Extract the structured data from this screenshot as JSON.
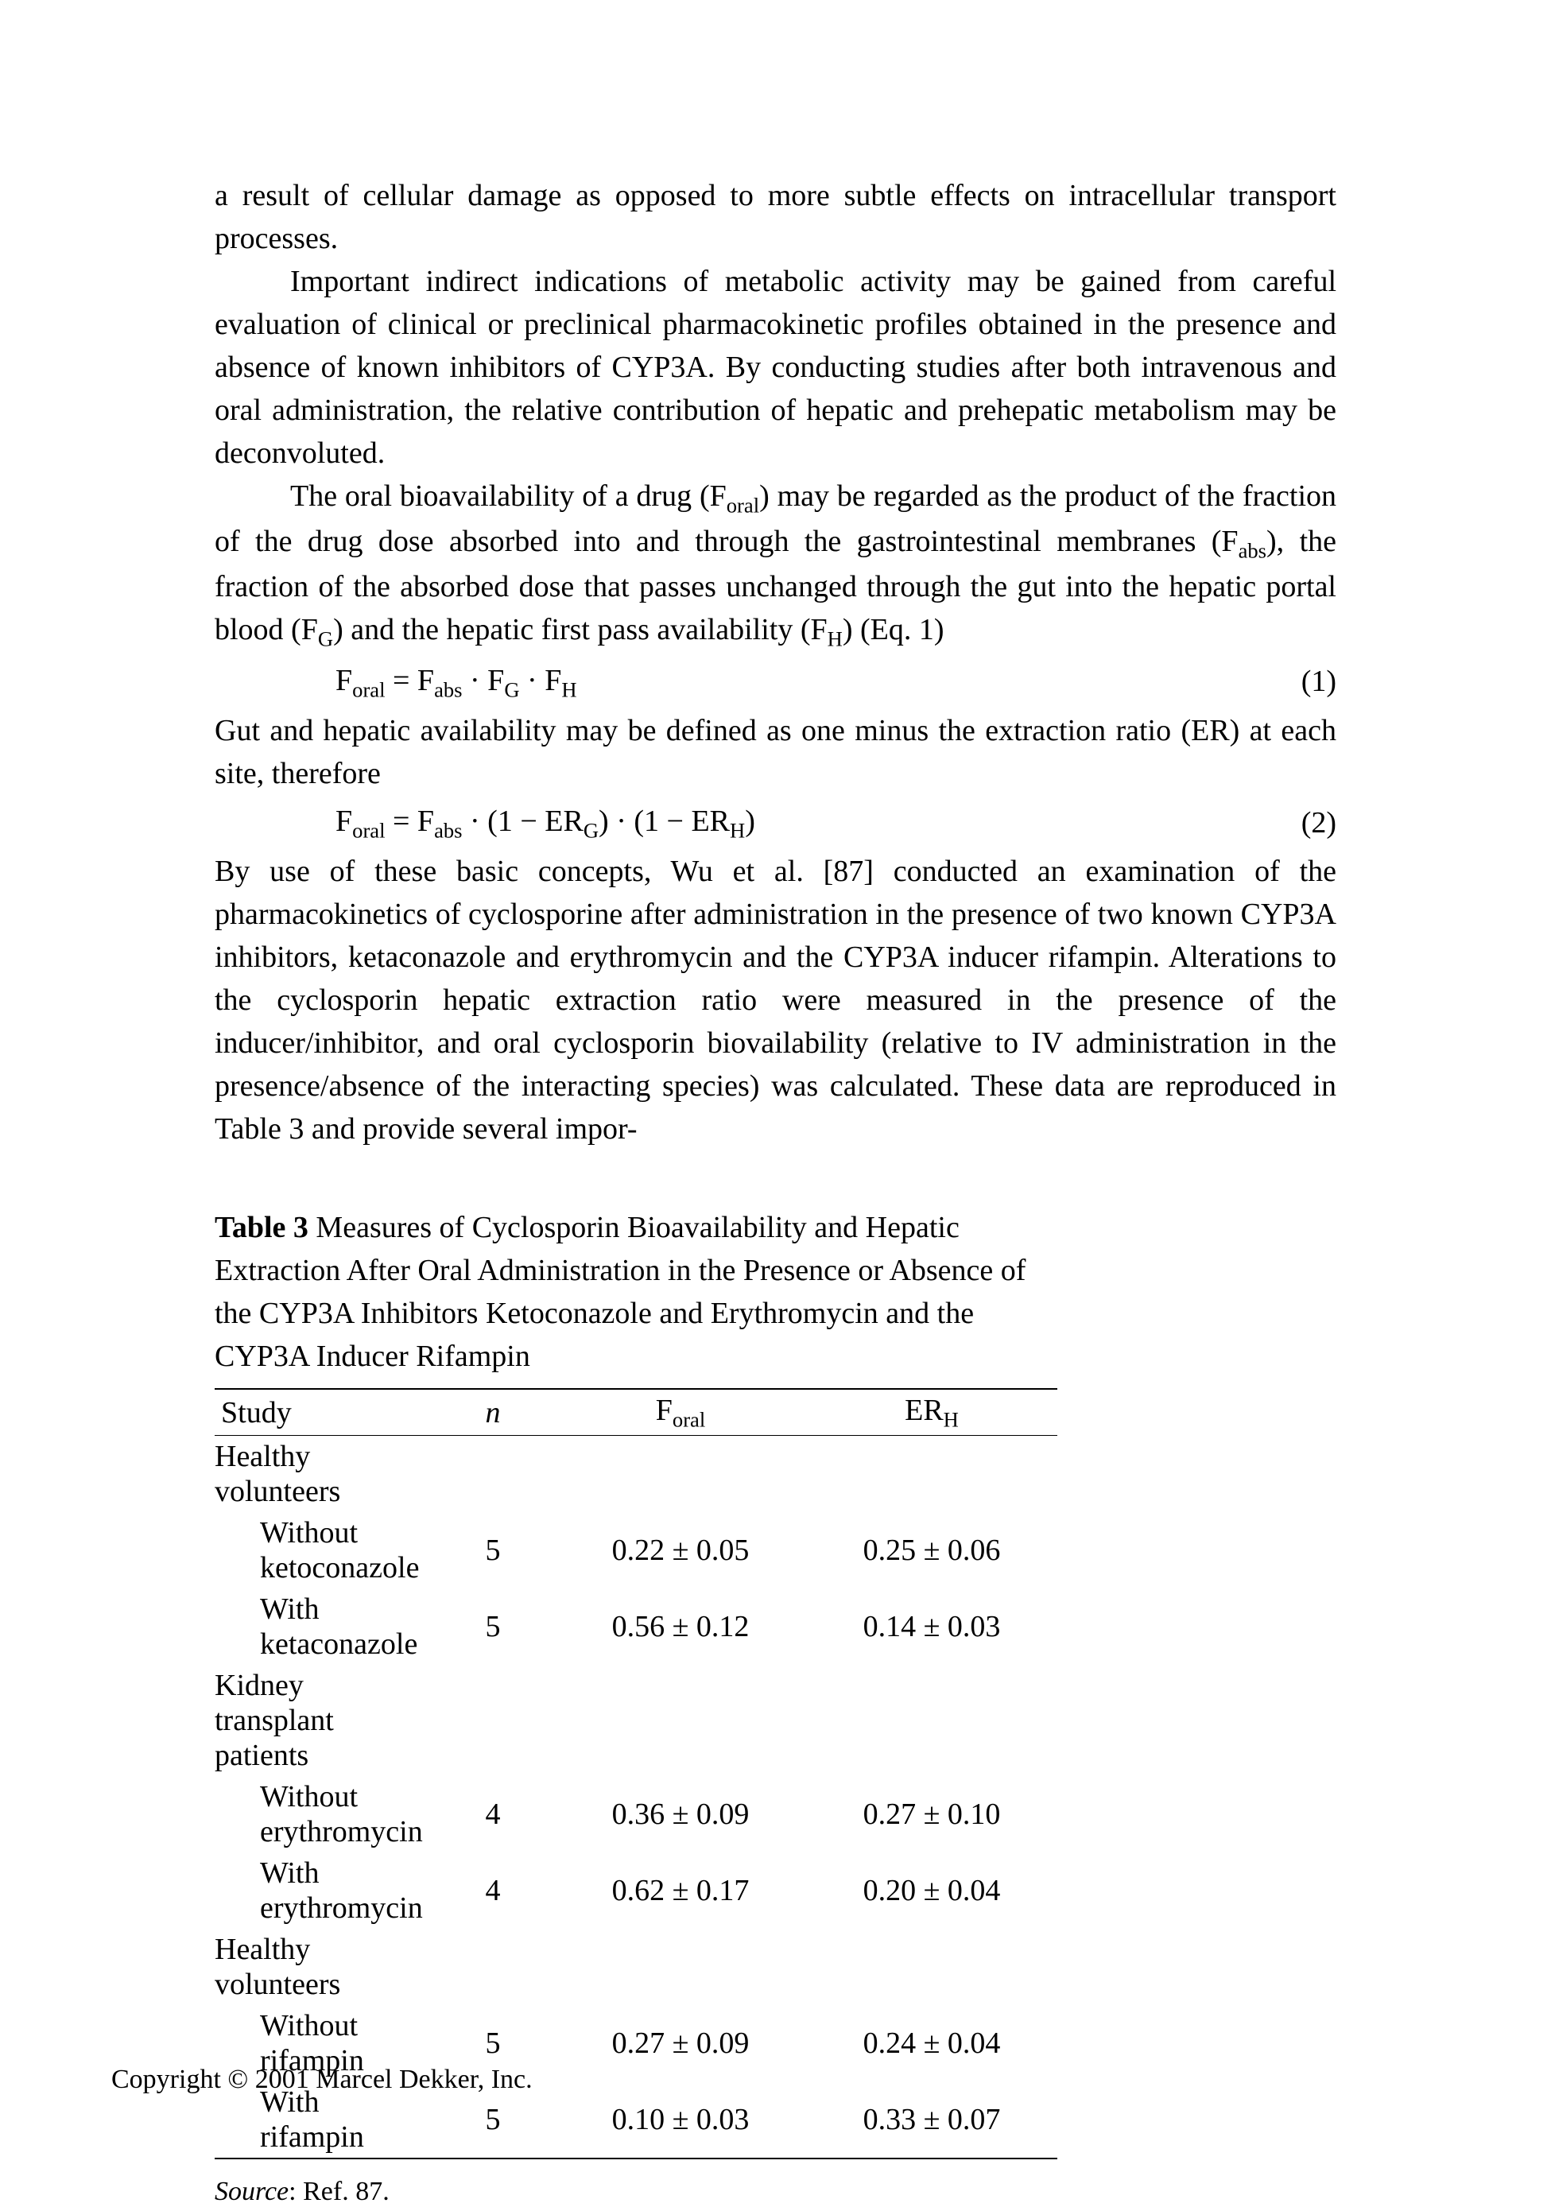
{
  "paragraphs": {
    "p1": "a result of cellular damage as opposed to more subtle effects on intracellular transport processes.",
    "p2": "Important indirect indications of metabolic activity may be gained from careful evaluation of clinical or preclinical pharmacokinetic profiles obtained in the presence and absence of known inhibitors of CYP3A. By conducting studies after both intravenous and oral administration, the relative contribution of hepatic and prehepatic metabolism may be deconvoluted.",
    "p3a": "The oral bioavailability of a drug (F",
    "p3b": ") may be regarded as the product of the fraction of the drug dose absorbed into and through the gastrointestinal membranes (F",
    "p3c": "), the fraction of the absorbed dose that passes unchanged through the gut into the hepatic portal blood (F",
    "p3d": ") and the hepatic first pass availability (F",
    "p3e": ") (Eq. 1)",
    "p4": "Gut and hepatic availability may be defined as one minus the extraction ratio (ER) at each site, therefore",
    "p5": "By use of these basic concepts, Wu et al. [87] conducted an examination of the pharmacokinetics of cyclosporine after administration in the presence of two known CYP3A inhibitors, ketaconazole and erythromycin and the CYP3A inducer rifampin. Alterations to the cyclosporin hepatic extraction ratio were measured in the presence of the inducer/inhibitor, and oral cyclosporin biovailability (relative to IV administration in the presence/absence of the interacting species) was calculated. These data are reproduced in Table 3 and provide several impor-"
  },
  "subscripts": {
    "oral": "oral",
    "abs": "abs",
    "G": "G",
    "H": "H"
  },
  "equations": {
    "eq1_num": "(1)",
    "eq2_num": "(2)",
    "eq1_parts": {
      "a": "F",
      "b": " = F",
      "c": " · F",
      "d": " · F"
    },
    "eq2_parts": {
      "a": "F",
      "b": " = F",
      "c": " · (1 − ER",
      "d": ") · (1 − ER",
      "e": ")"
    }
  },
  "table": {
    "label": "Table 3",
    "caption_rest": "   Measures of Cyclosporin Bioavailability and Hepatic Extraction After Oral Administration in the Presence or Absence of the CYP3A Inhibitors Ketoconazole and Erythromycin and the CYP3A Inducer Rifampin",
    "headers": {
      "study": "Study",
      "n": "n",
      "foral_pre": "F",
      "erh_pre": "ER"
    },
    "rows": [
      {
        "type": "group",
        "study": "Healthy volunteers"
      },
      {
        "type": "sub",
        "study": "Without ketoconazole",
        "n": "5",
        "foral": "0.22 ± 0.05",
        "erh": "0.25 ± 0.06"
      },
      {
        "type": "sub",
        "study": "With ketaconazole",
        "n": "5",
        "foral": "0.56 ± 0.12",
        "erh": "0.14 ± 0.03"
      },
      {
        "type": "group",
        "study": "Kidney transplant patients"
      },
      {
        "type": "sub",
        "study": "Without erythromycin",
        "n": "4",
        "foral": "0.36 ± 0.09",
        "erh": "0.27 ± 0.10"
      },
      {
        "type": "sub",
        "study": "With erythromycin",
        "n": "4",
        "foral": "0.62 ± 0.17",
        "erh": "0.20 ± 0.04"
      },
      {
        "type": "group",
        "study": "Healthy volunteers"
      },
      {
        "type": "sub",
        "study": "Without rifampin",
        "n": "5",
        "foral": "0.27 ± 0.09",
        "erh": "0.24 ± 0.04"
      },
      {
        "type": "sub",
        "study": "With rifampin",
        "n": "5",
        "foral": "0.10 ± 0.03",
        "erh": "0.33 ± 0.07"
      }
    ],
    "source_label": "Source",
    "source_rest": ": Ref. 87."
  },
  "copyright": "Copyright © 2001 Marcel Dekker, Inc."
}
